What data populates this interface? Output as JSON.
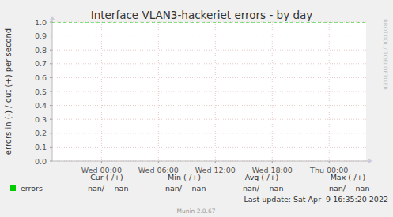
{
  "chart_data": {
    "type": "line",
    "title": "Interface VLAN3-hackeriet errors - by day",
    "y_label": "errors in (-) / out (+) per second",
    "x": [],
    "series": [
      {
        "name": "errors",
        "color": "#00cc00",
        "values": []
      }
    ],
    "xlim": [
      -5.2,
      27.9
    ],
    "xticks": [
      {
        "value": 0,
        "label": "Wed 00:00"
      },
      {
        "value": 6,
        "label": "Wed 06:00"
      },
      {
        "value": 12,
        "label": "Wed 12:00"
      },
      {
        "value": 18,
        "label": "Wed 18:00"
      },
      {
        "value": 24,
        "label": "Thu 00:00"
      }
    ],
    "ylim": [
      0,
      1
    ],
    "yticks": [
      {
        "value": 0,
        "label": "0.0"
      },
      {
        "value": 0.1,
        "label": "0.1"
      },
      {
        "value": 0.2,
        "label": "0.2"
      },
      {
        "value": 0.3,
        "label": "0.3"
      },
      {
        "value": 0.4,
        "label": "0.4"
      },
      {
        "value": 0.5,
        "label": "0.5"
      },
      {
        "value": 0.6,
        "label": "0.6"
      },
      {
        "value": 0.7,
        "label": "0.7"
      },
      {
        "value": 0.8,
        "label": "0.8"
      },
      {
        "value": 0.9,
        "label": "0.9"
      },
      {
        "value": 1,
        "label": "1.0"
      }
    ],
    "grid": true
  },
  "legend_table": {
    "headers": [
      "Cur (-/+)",
      "Min (-/+)",
      "Avg (-/+)",
      "Max (-/+)"
    ],
    "values": [
      "-nan/   -nan",
      "-nan/   -nan",
      "-nan/   -nan",
      "-nan/   -nan"
    ]
  },
  "last_update": "Last update: Sat Apr  9 16:35:20 2022",
  "side_text": "RRDTOOL / TOBI OETIKER",
  "footer": "Munin 2.0.67"
}
